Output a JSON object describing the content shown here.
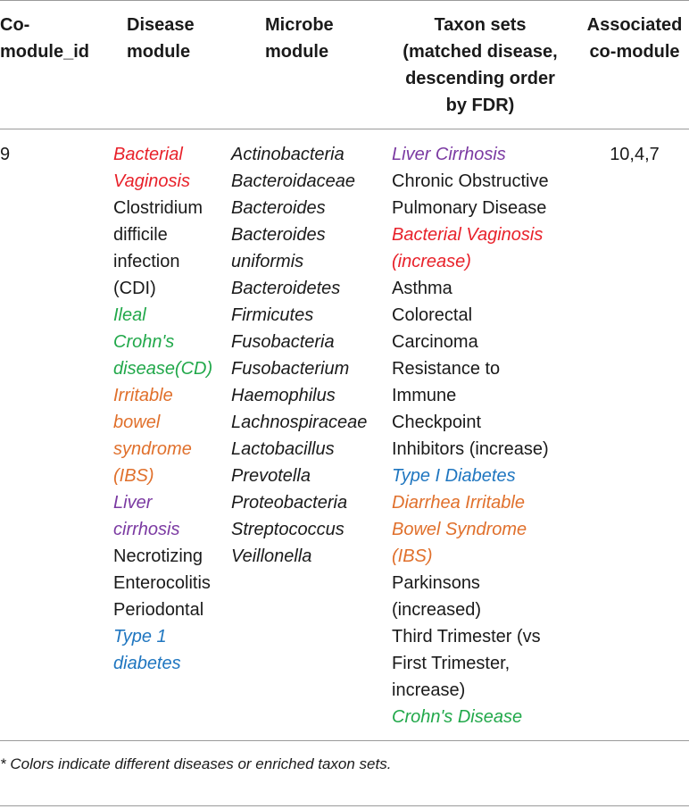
{
  "header": {
    "col1": [
      "Co-",
      "module_id"
    ],
    "col2": [
      "Disease",
      "module"
    ],
    "col3": [
      "Microbe",
      "module"
    ],
    "col4": [
      "Taxon sets",
      "(matched disease,",
      "descending order",
      "by FDR)"
    ],
    "col5": [
      "Associated",
      "co-module"
    ]
  },
  "row": {
    "comodule_id": "9",
    "disease_lines": [
      {
        "text": "Bacterial",
        "color": "#e8212a",
        "italic": true
      },
      {
        "text": "Vaginosis",
        "color": "#e8212a",
        "italic": true
      },
      {
        "text": "Clostridium",
        "color": "#1a1a1a",
        "italic": false
      },
      {
        "text": "difficile",
        "color": "#1a1a1a",
        "italic": false
      },
      {
        "text": "infection",
        "color": "#1a1a1a",
        "italic": false
      },
      {
        "text": "(CDI)",
        "color": "#1a1a1a",
        "italic": false
      },
      {
        "text": "Ileal",
        "color": "#21a84a",
        "italic": true
      },
      {
        "text": "Crohn's",
        "color": "#21a84a",
        "italic": true
      },
      {
        "text": "disease(CD)",
        "color": "#21a84a",
        "italic": true
      },
      {
        "text": "Irritable",
        "color": "#e0702c",
        "italic": true
      },
      {
        "text": "bowel",
        "color": "#e0702c",
        "italic": true
      },
      {
        "text": "syndrome",
        "color": "#e0702c",
        "italic": true
      },
      {
        "text": "(IBS)",
        "color": "#e0702c",
        "italic": true
      },
      {
        "text": "Liver",
        "color": "#7b3aa2",
        "italic": true
      },
      {
        "text": "cirrhosis",
        "color": "#7b3aa2",
        "italic": true
      },
      {
        "text": "Necrotizing",
        "color": "#1a1a1a",
        "italic": false
      },
      {
        "text": "Enterocolitis",
        "color": "#1a1a1a",
        "italic": false
      },
      {
        "text": "Periodontal",
        "color": "#1a1a1a",
        "italic": false
      },
      {
        "text": "Type 1",
        "color": "#1f76c0",
        "italic": true
      },
      {
        "text": "diabetes",
        "color": "#1f76c0",
        "italic": true
      }
    ],
    "microbe_lines": [
      "Actinobacteria",
      "Bacteroidaceae",
      "Bacteroides",
      "Bacteroides",
      "uniformis",
      "Bacteroidetes",
      "Firmicutes",
      "Fusobacteria",
      "Fusobacterium",
      "Haemophilus",
      "Lachnospiraceae",
      "Lactobacillus",
      "Prevotella",
      "Proteobacteria",
      "Streptococcus",
      "Veillonella"
    ],
    "taxon_lines": [
      {
        "text": "Liver Cirrhosis",
        "color": "#7b3aa2",
        "italic": true
      },
      {
        "text": "Chronic Obstructive",
        "color": "#1a1a1a",
        "italic": false
      },
      {
        "text": "Pulmonary Disease",
        "color": "#1a1a1a",
        "italic": false
      },
      {
        "text": "Bacterial Vaginosis",
        "color": "#e8212a",
        "italic": true
      },
      {
        "text": "(increase)",
        "color": "#e8212a",
        "italic": true
      },
      {
        "text": "Asthma",
        "color": "#1a1a1a",
        "italic": false
      },
      {
        "text": "Colorectal",
        "color": "#1a1a1a",
        "italic": false
      },
      {
        "text": "Carcinoma",
        "color": "#1a1a1a",
        "italic": false
      },
      {
        "text": "Resistance to",
        "color": "#1a1a1a",
        "italic": false
      },
      {
        "text": "Immune",
        "color": "#1a1a1a",
        "italic": false
      },
      {
        "text": "Checkpoint",
        "color": "#1a1a1a",
        "italic": false
      },
      {
        "text": "Inhibitors (increase)",
        "color": "#1a1a1a",
        "italic": false
      },
      {
        "text": "Type I Diabetes",
        "color": "#1f76c0",
        "italic": true
      },
      {
        "text": "Diarrhea Irritable",
        "color": "#e0702c",
        "italic": true
      },
      {
        "text": "Bowel Syndrome",
        "color": "#e0702c",
        "italic": true
      },
      {
        "text": "(IBS)",
        "color": "#e0702c",
        "italic": true
      },
      {
        "text": "Parkinsons",
        "color": "#1a1a1a",
        "italic": false
      },
      {
        "text": "(increased)",
        "color": "#1a1a1a",
        "italic": false
      },
      {
        "text": "Third Trimester (vs",
        "color": "#1a1a1a",
        "italic": false
      },
      {
        "text": "First Trimester,",
        "color": "#1a1a1a",
        "italic": false
      },
      {
        "text": "increase)",
        "color": "#1a1a1a",
        "italic": false
      },
      {
        "text": "Crohn's Disease",
        "color": "#21a84a",
        "italic": true
      }
    ],
    "associated": "10,4,7"
  },
  "footnote": "* Colors indicate different diseases or enriched taxon sets."
}
